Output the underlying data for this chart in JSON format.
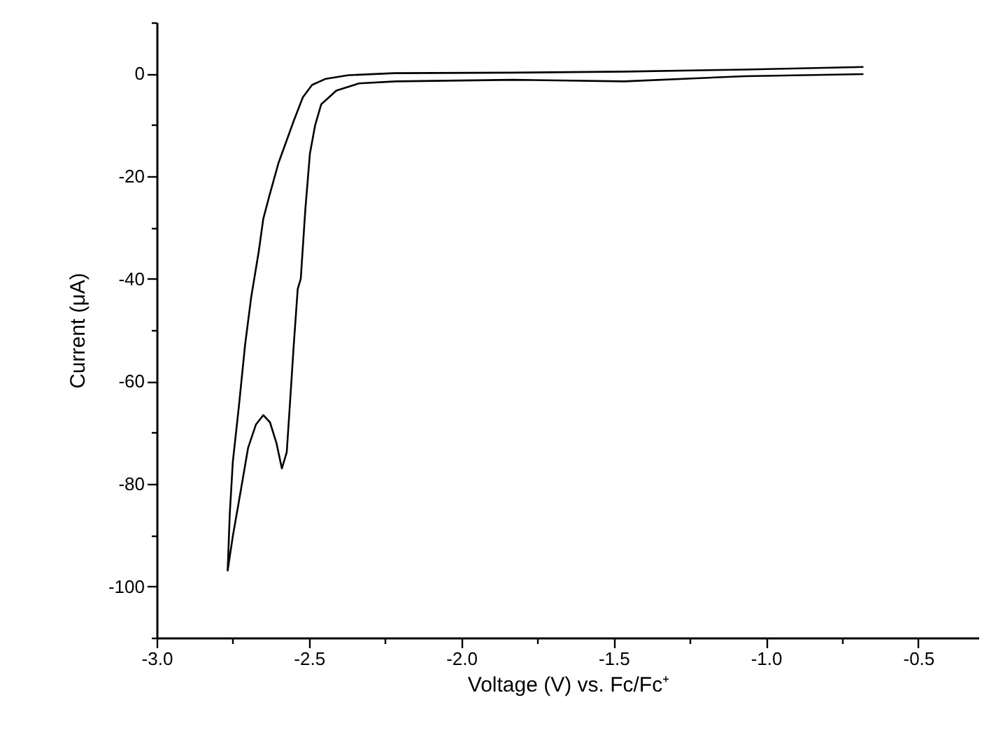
{
  "chart_data": {
    "type": "line",
    "xlabel": "Voltage (V) vs. Fc/Fc⁺",
    "ylabel": "Current (μA)",
    "xlim": [
      -3.0,
      -0.3
    ],
    "ylim": [
      -110,
      10
    ],
    "xticks": [
      {
        "value": -3,
        "label": "-3.0"
      },
      {
        "value": -2.75,
        "label": null
      },
      {
        "value": -2.5,
        "label": "-2.5"
      },
      {
        "value": -2.25,
        "label": null
      },
      {
        "value": -2,
        "label": "-2.0"
      },
      {
        "value": -1.75,
        "label": null
      },
      {
        "value": -1.5,
        "label": "-1.5"
      },
      {
        "value": -1.25,
        "label": null
      },
      {
        "value": -1,
        "label": "-1.0"
      },
      {
        "value": -0.75,
        "label": null
      },
      {
        "value": -0.5,
        "label": "-0.5"
      }
    ],
    "yticks": [
      {
        "value": -110,
        "label": null
      },
      -100,
      {
        "value": -90,
        "label": null
      },
      -80,
      {
        "value": -70,
        "label": null
      },
      -60,
      {
        "value": -50,
        "label": null
      },
      -40,
      {
        "value": -30,
        "label": null
      },
      -20,
      {
        "value": -10,
        "label": null
      },
      0,
      {
        "value": 10,
        "label": null
      }
    ],
    "grid": false,
    "marker": "none",
    "line_style": "solid",
    "series": [
      {
        "color": "#000000",
        "x": [
          -0.68,
          -1.07,
          -1.46,
          -1.83,
          -2.22,
          -2.37,
          -2.445,
          -2.49,
          -2.52,
          -2.55,
          -2.6,
          -2.63,
          -2.65,
          -2.665,
          -2.69,
          -2.71,
          -2.73,
          -2.75,
          -2.76,
          -2.767,
          -2.75,
          -2.726,
          -2.7,
          -2.674,
          -2.65,
          -2.628,
          -2.607,
          -2.589,
          -2.573,
          -2.563,
          -2.55,
          -2.537,
          -2.527,
          -2.512,
          -2.497,
          -2.48,
          -2.46,
          -2.41,
          -2.336,
          -2.215,
          -1.83,
          -1.465,
          -1.07,
          -0.68
        ],
        "values": [
          1.3,
          0.8,
          0.4,
          0.2,
          0.1,
          -0.3,
          -1.0,
          -2.2,
          -4.6,
          -9.2,
          -17.4,
          -23.8,
          -28.3,
          -34.7,
          -43.7,
          -53,
          -64.8,
          -75.7,
          -85.8,
          -96.9,
          -90.2,
          -82,
          -73,
          -68.4,
          -66.6,
          -68,
          -72,
          -77,
          -73.8,
          -64.8,
          -52.9,
          -42,
          -40,
          -26.5,
          -15.6,
          -10.1,
          -6,
          -3.3,
          -1.9,
          -1.5,
          -1.2,
          -1.5,
          -0.5,
          -0.1
        ]
      }
    ]
  }
}
